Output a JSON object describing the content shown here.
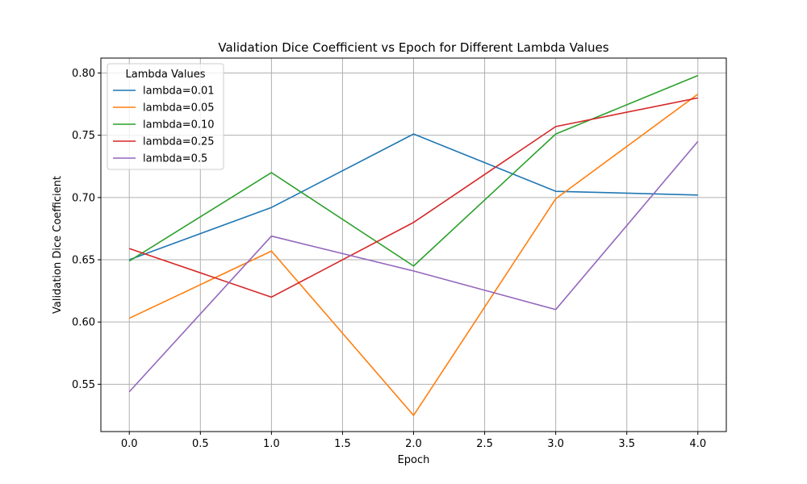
{
  "chart_data": {
    "type": "line",
    "title": "Validation Dice Coefficient vs Epoch for Different Lambda Values",
    "xlabel": "Epoch",
    "ylabel": "Validation Dice Coefficient",
    "x": [
      0,
      1,
      2,
      3,
      4
    ],
    "xlim": [
      -0.2,
      4.2
    ],
    "ylim": [
      0.512,
      0.812
    ],
    "xticks": [
      0.0,
      0.5,
      1.0,
      1.5,
      2.0,
      2.5,
      3.0,
      3.5,
      4.0
    ],
    "xtick_labels": [
      "0.0",
      "0.5",
      "1.0",
      "1.5",
      "2.0",
      "2.5",
      "3.0",
      "3.5",
      "4.0"
    ],
    "yticks": [
      0.55,
      0.6,
      0.65,
      0.7,
      0.75,
      0.8
    ],
    "ytick_labels": [
      "0.55",
      "0.60",
      "0.65",
      "0.70",
      "0.75",
      "0.80"
    ],
    "grid": true,
    "legend": {
      "title": "Lambda Values",
      "placement": "upper-left"
    },
    "series": [
      {
        "name": "lambda=0.01",
        "color": "#1f77b4",
        "values": [
          0.65,
          0.692,
          0.751,
          0.705,
          0.702
        ]
      },
      {
        "name": "lambda=0.05",
        "color": "#ff7f0e",
        "values": [
          0.603,
          0.657,
          0.525,
          0.699,
          0.783
        ]
      },
      {
        "name": "lambda=0.10",
        "color": "#2ca02c",
        "values": [
          0.649,
          0.72,
          0.645,
          0.751,
          0.798
        ]
      },
      {
        "name": "lambda=0.25",
        "color": "#d62728",
        "values": [
          0.659,
          0.62,
          0.68,
          0.757,
          0.78
        ]
      },
      {
        "name": "lambda=0.5",
        "color": "#9467bd",
        "values": [
          0.544,
          0.669,
          0.641,
          0.61,
          0.745
        ]
      }
    ]
  }
}
